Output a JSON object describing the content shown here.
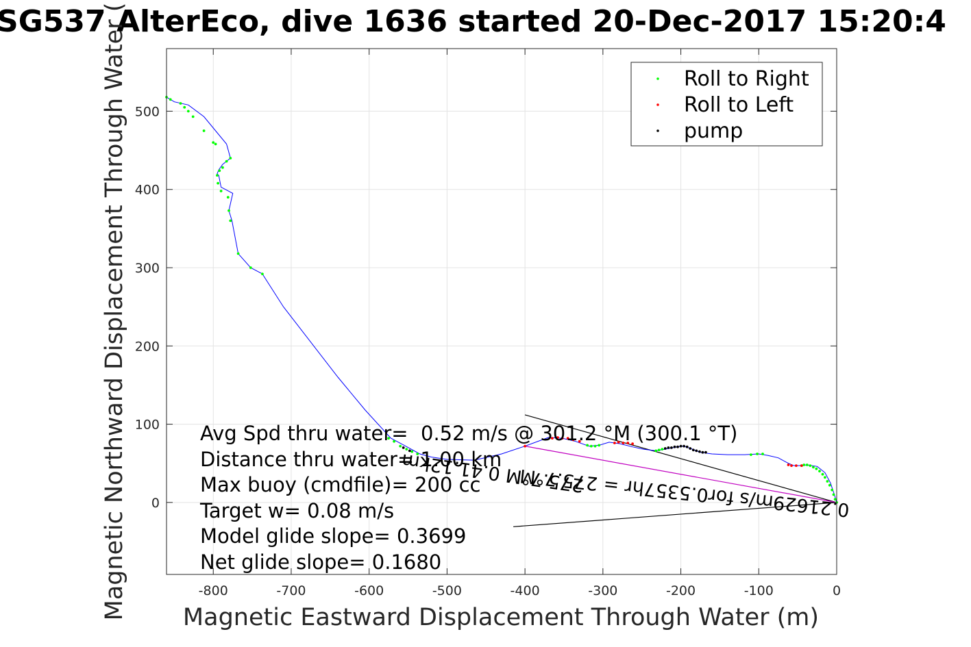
{
  "chart_data": {
    "type": "line",
    "title": "SG537 AlterEco, dive 1636 started 20-Dec-2017 15:20:4",
    "xlabel": "Magnetic Eastward Displacement Through Water (m)",
    "ylabel": "Magnetic Northward Displacement Through Water (",
    "xlim": [
      -860,
      0
    ],
    "ylim": [
      -92,
      580
    ],
    "xticks": [
      -800,
      -700,
      -600,
      -500,
      -400,
      -300,
      -200,
      -100,
      0
    ],
    "yticks": [
      0,
      100,
      200,
      300,
      400,
      500
    ],
    "grid": true,
    "legend_position": "top-right",
    "legend": [
      {
        "label": "Roll to Right",
        "color": "#00ff00"
      },
      {
        "label": "Roll to Left",
        "color": "#ff0000"
      },
      {
        "label": "pump",
        "color": "#000000"
      }
    ],
    "track": {
      "color": "#0000ff",
      "x": [
        0,
        -3,
        -8,
        -15,
        -25,
        -38,
        -48,
        -55,
        -62,
        -75,
        -88,
        -100,
        -118,
        -140,
        -160,
        -175,
        -185,
        -193,
        -198,
        -205,
        -215,
        -232,
        -248,
        -262,
        -278,
        -292,
        -305,
        -318,
        -335,
        -352,
        -370,
        -400,
        -430,
        -465,
        -500,
        -520,
        -535,
        -555,
        -572,
        -605,
        -640,
        -675,
        -710,
        -737,
        -752,
        -768,
        -776,
        -780,
        -775,
        -790,
        -793,
        -795,
        -793,
        -788,
        -778,
        -783,
        -797,
        -812,
        -832,
        -850,
        -860
      ],
      "y": [
        0,
        10,
        25,
        38,
        46,
        48,
        47,
        47,
        50,
        57,
        60,
        62,
        61,
        61,
        62,
        64,
        68,
        71,
        72,
        71,
        69,
        66,
        68,
        71,
        75,
        77,
        73,
        72,
        78,
        82,
        83,
        72,
        62,
        54,
        55,
        58,
        62,
        73,
        82,
        118,
        160,
        205,
        250,
        292,
        300,
        318,
        360,
        373,
        395,
        403,
        418,
        420,
        425,
        432,
        440,
        458,
        475,
        493,
        508,
        512,
        518
      ]
    },
    "roll_right": {
      "x": [
        0,
        -2,
        -4,
        -6,
        -9,
        -12,
        -15,
        -18,
        -22,
        -26,
        -30,
        -34,
        -38,
        -42,
        -45,
        -95,
        -102,
        -110,
        -232,
        -228,
        -224,
        -305,
        -310,
        -315,
        -320,
        -538,
        -545,
        -552,
        -560,
        -568,
        -575,
        -737,
        -752,
        -768,
        -778,
        -780,
        -781,
        -790,
        -794,
        -795,
        -792,
        -788,
        -783,
        -778,
        -797,
        -800,
        -812,
        -826,
        -832,
        -837,
        -842,
        -855,
        -860
      ],
      "y": [
        0,
        4,
        10,
        16,
        22,
        27,
        32,
        36,
        40,
        43,
        45,
        47,
        48,
        48,
        47,
        62,
        62,
        61,
        66,
        67,
        68,
        73,
        72,
        72,
        73,
        62,
        65,
        68,
        72,
        78,
        82,
        292,
        300,
        318,
        360,
        373,
        390,
        398,
        408,
        418,
        424,
        428,
        436,
        440,
        458,
        460,
        475,
        493,
        500,
        505,
        510,
        515,
        518
      ]
    },
    "roll_left": {
      "x": [
        -45,
        -52,
        -58,
        -62,
        -262,
        -268,
        -274,
        -280,
        -285,
        -330,
        -338,
        -345,
        -352,
        -358,
        -365,
        -400
      ],
      "y": [
        47,
        47,
        47,
        48,
        75,
        76,
        76,
        77,
        76,
        78,
        80,
        82,
        82,
        83,
        82,
        72
      ],
      "magenta_line": {
        "x": [
          0,
          -400
        ],
        "y": [
          0,
          72
        ]
      }
    },
    "pump": {
      "x": [
        -168,
        -172,
        -176,
        -180,
        -184,
        -188,
        -192,
        -196,
        -200,
        -204,
        -208,
        -212,
        -216,
        -220,
        -548,
        -556
      ],
      "y": [
        64,
        64,
        65,
        66,
        67,
        69,
        71,
        72,
        72,
        71,
        71,
        70,
        70,
        69,
        66,
        70
      ]
    },
    "vectors": [
      {
        "x": [
          0,
          -400
        ],
        "y": [
          0,
          112
        ]
      },
      {
        "x": [
          0,
          -415
        ],
        "y": [
          0,
          -31
        ]
      }
    ],
    "vector_labels": [
      {
        "text": "275.7°M 0.41.12km",
        "rotation_deg": 188
      },
      {
        "text": "0.21629m/s for0.5357hr = 275.7°M",
        "rotation_deg": 186
      }
    ],
    "annotations": [
      "Avg Spd thru water=  0.52 m/s @ 301.2 °M (300.1 °T)",
      "Distance thru water= 1.00 km",
      "Max buoy (cmdfile)= 200 cc",
      "Target w= 0.08 m/s",
      "Model glide slope= 0.3699",
      "Net glide slope= 0.1680"
    ]
  }
}
